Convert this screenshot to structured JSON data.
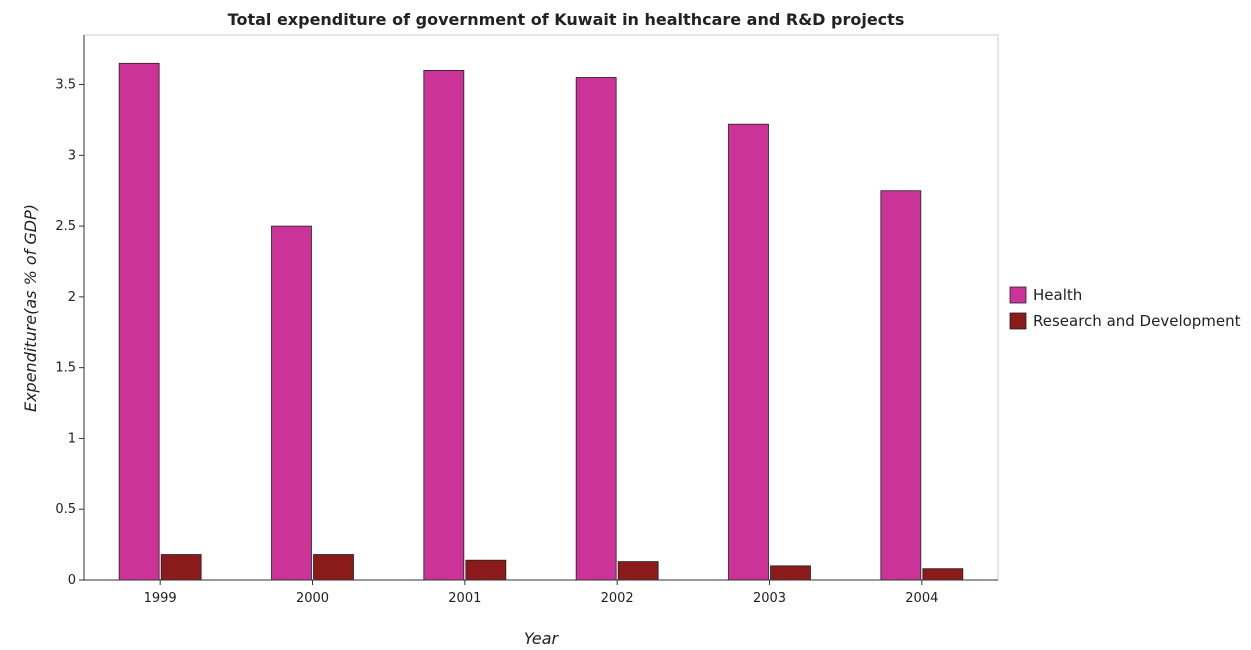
{
  "chart_data": {
    "type": "bar",
    "title": "Total expenditure of government of Kuwait in healthcare and R&D projects",
    "xlabel": "Year",
    "ylabel": "Expenditure(as % of GDP)",
    "categories": [
      "1999",
      "2000",
      "2001",
      "2002",
      "2003",
      "2004"
    ],
    "series": [
      {
        "name": "Health",
        "color": "#cc3399",
        "values": [
          3.65,
          2.5,
          3.6,
          3.55,
          3.22,
          2.75
        ]
      },
      {
        "name": "Research and Development",
        "color": "#8b1a1a",
        "values": [
          0.18,
          0.18,
          0.14,
          0.13,
          0.1,
          0.08
        ]
      }
    ],
    "ylim": [
      0,
      3.85
    ],
    "yticks": [
      0,
      0.5,
      1,
      1.5,
      2,
      2.5,
      3,
      3.5
    ],
    "ytick_labels": [
      "0",
      "0.5",
      "1",
      "1.5",
      "2",
      "2.5",
      "3",
      "3.5"
    ],
    "grid": false,
    "legend_position": "right"
  }
}
